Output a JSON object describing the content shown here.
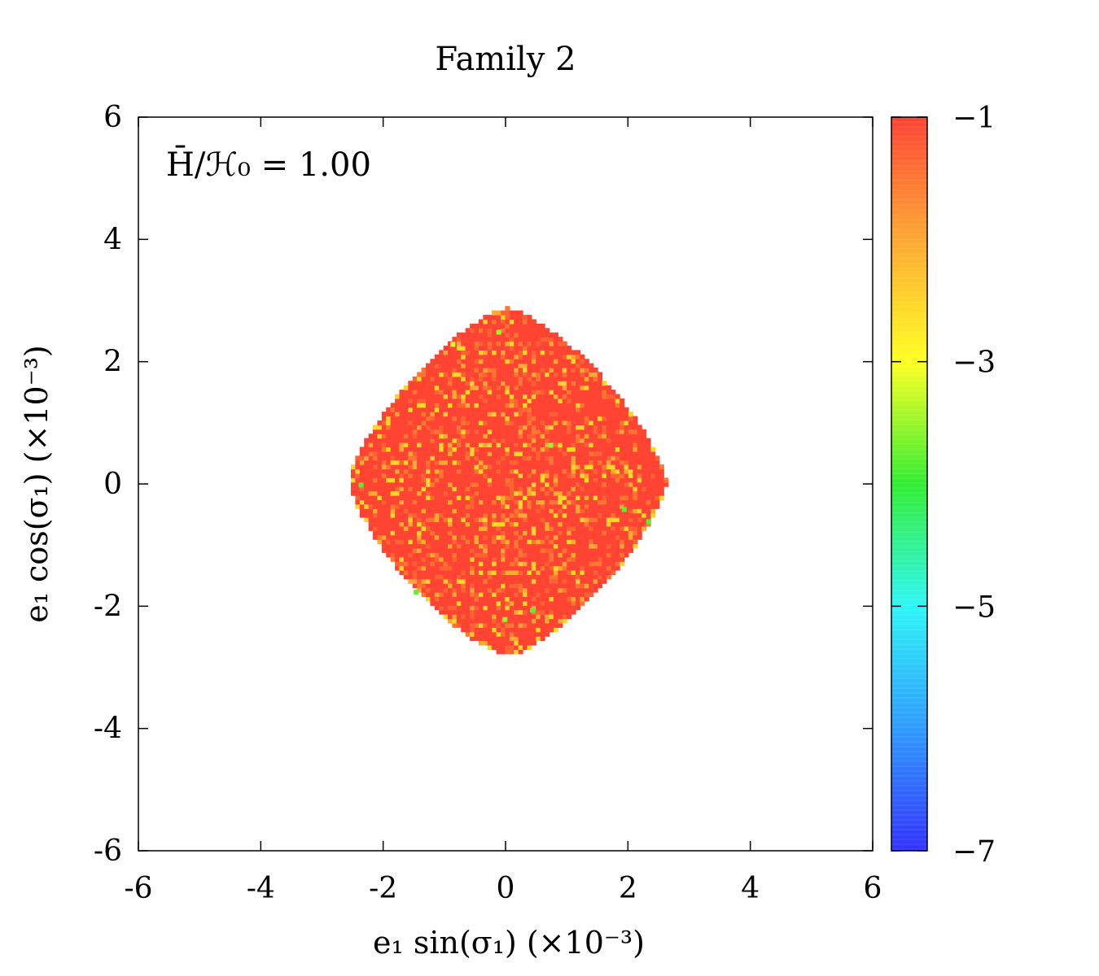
{
  "chart_data": {
    "type": "heatmap",
    "title": "Family 2",
    "xlabel": "e₁ sin(σ₁) (×10⁻³)",
    "ylabel": "e₁ cos(σ₁) (×10⁻³)",
    "xlim": [
      -6,
      6
    ],
    "ylim": [
      -6,
      6
    ],
    "x_ticks": [
      "-6",
      "-4",
      "-2",
      "0",
      "2",
      "4",
      "6"
    ],
    "y_ticks": [
      "-6",
      "-4",
      "-2",
      "0",
      "2",
      "4",
      "6"
    ],
    "annotation": "H̄/ℋ₀ = 1.00",
    "colorbar": {
      "range": [
        -7,
        -1
      ],
      "ticks": [
        "−1",
        "−3",
        "−5",
        "−7"
      ],
      "colors": [
        "#3333ff",
        "#2f9bff",
        "#2ff6f6",
        "#33ee33",
        "#ffff22",
        "#ffa833",
        "#ff4433"
      ]
    },
    "region": {
      "shape": "diamond",
      "center": [
        0,
        0
      ],
      "x_half_width": 2.6,
      "y_half_height": 2.85,
      "dominant_value": -1,
      "scattered_values": [
        -1.5,
        -2,
        -2.5
      ],
      "outliers": [
        {
          "x": 0.7,
          "y": 0.6,
          "value": -3.5
        },
        {
          "x": -2.4,
          "y": -0.05,
          "value": -3.8
        },
        {
          "x": 1.9,
          "y": -0.45,
          "value": -3.8
        },
        {
          "x": 2.3,
          "y": -0.65,
          "value": -3.8
        },
        {
          "x": -1.5,
          "y": -1.8,
          "value": -3.8
        },
        {
          "x": 0.4,
          "y": -2.1,
          "value": -3.8
        },
        {
          "x": -0.05,
          "y": -2.25,
          "value": -3.5
        },
        {
          "x": -0.9,
          "y": 2.25,
          "value": -3.2
        },
        {
          "x": -0.15,
          "y": 2.45,
          "value": -3.5
        }
      ]
    }
  }
}
